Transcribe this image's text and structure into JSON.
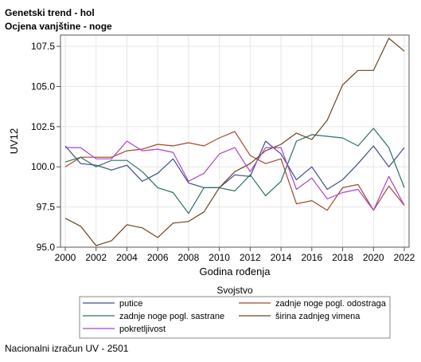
{
  "header": {
    "title": "Genetski trend - hol",
    "subtitle": "Ocjena vanjštine - noge"
  },
  "footer": {
    "text": "Nacionalni izračun UV - 2501"
  },
  "chart_data": {
    "type": "line",
    "xlabel": "Godina rođenja",
    "ylabel": "UV12",
    "xlim": [
      2000,
      2022
    ],
    "ylim": [
      95,
      108.2
    ],
    "xticks": [
      2000,
      2002,
      2004,
      2006,
      2008,
      2010,
      2012,
      2014,
      2016,
      2018,
      2020,
      2022
    ],
    "yticks": [
      95.0,
      97.5,
      100.0,
      102.5,
      105.0,
      107.5
    ],
    "ytick_labels": [
      "95.0",
      "97.5",
      "100.0",
      "102.5",
      "105.0",
      "107.5"
    ],
    "grid": true,
    "legend": {
      "title": "Svojstvo",
      "placement": "bottom"
    },
    "x": [
      2000,
      2001,
      2002,
      2003,
      2004,
      2005,
      2006,
      2007,
      2008,
      2009,
      2010,
      2011,
      2012,
      2013,
      2014,
      2015,
      2016,
      2017,
      2018,
      2019,
      2020,
      2021,
      2022
    ],
    "series": [
      {
        "name": "putice",
        "color": "#3b4f8a",
        "values": [
          101.3,
          100.2,
          100.1,
          99.8,
          100.1,
          99.1,
          99.6,
          100.5,
          99.0,
          98.7,
          98.7,
          99.5,
          99.4,
          101.6,
          100.8,
          99.2,
          100.0,
          98.6,
          99.2,
          100.2,
          101.3,
          100.0,
          101.2
        ]
      },
      {
        "name": "zadnje noge pogl. odostraga",
        "color": "#9e4a2a",
        "values": [
          100.0,
          100.6,
          100.6,
          100.6,
          101.0,
          101.1,
          101.4,
          101.3,
          101.5,
          101.3,
          101.8,
          102.2,
          100.7,
          100.2,
          100.5,
          97.7,
          97.9,
          97.3,
          98.7,
          98.9,
          97.3,
          98.8,
          97.6
        ]
      },
      {
        "name": "zadnje noge pogl. sastrane",
        "color": "#2a7068",
        "values": [
          100.3,
          100.6,
          100.0,
          100.4,
          100.4,
          99.7,
          98.7,
          98.4,
          97.1,
          98.7,
          98.7,
          98.5,
          99.5,
          98.2,
          99.1,
          101.6,
          102.0,
          101.9,
          101.8,
          101.3,
          102.4,
          101.2,
          98.7
        ]
      },
      {
        "name": "širina zadnjeg vimena",
        "color": "#6b4420",
        "values": [
          96.8,
          96.3,
          95.1,
          95.4,
          96.4,
          96.2,
          95.6,
          96.5,
          96.6,
          97.2,
          98.7,
          99.7,
          100.2,
          101.0,
          101.4,
          102.1,
          101.7,
          102.9,
          105.1,
          106.0,
          106.0,
          108.0,
          107.2
        ]
      },
      {
        "name": "pokretljivost",
        "color": "#b040c8",
        "values": [
          101.2,
          101.2,
          100.5,
          100.5,
          101.6,
          101.0,
          101.1,
          100.9,
          99.1,
          99.6,
          100.8,
          101.2,
          99.7,
          101.2,
          101.2,
          98.6,
          99.3,
          98.0,
          98.4,
          98.6,
          97.3,
          99.4,
          97.6
        ]
      }
    ]
  }
}
